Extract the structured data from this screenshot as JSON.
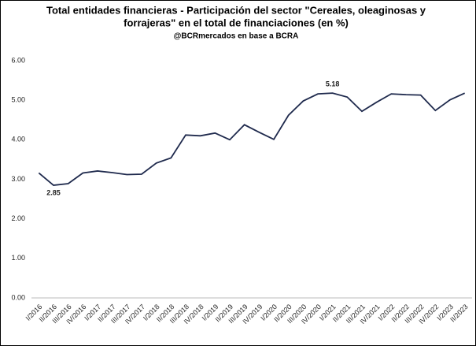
{
  "chart_data": {
    "type": "line",
    "title": [
      "Total entidades financieras - Participación del sector \"Cereales, oleaginosas y",
      "forrajeras\" en el total de financiaciones (en %)"
    ],
    "subtitle": "@BCRmercados en base a BCRA",
    "categories": [
      "I/2016",
      "II/2016",
      "III/2016",
      "IV/2016",
      "I/2017",
      "II/2017",
      "III/2017",
      "IV/2017",
      "I/2018",
      "II/2018",
      "III/2018",
      "IV/2018",
      "I/2019",
      "II/2019",
      "III/2019",
      "IV/2019",
      "I/2020",
      "II/2020",
      "III/2020",
      "IV/2020",
      "I/2021",
      "II/2021",
      "III/2021",
      "IV/2021",
      "I/2022",
      "II/2022",
      "III/2022",
      "IV/2022",
      "I/2023",
      "II/2023"
    ],
    "values": [
      3.16,
      2.85,
      2.89,
      3.16,
      3.21,
      3.17,
      3.12,
      3.13,
      3.41,
      3.54,
      4.12,
      4.1,
      4.17,
      4.0,
      4.38,
      4.19,
      4.01,
      4.62,
      4.98,
      5.16,
      5.18,
      5.08,
      4.72,
      4.95,
      5.16,
      5.14,
      5.13,
      4.74,
      5.01,
      5.18
    ],
    "value_labels": [
      null,
      "2.85",
      null,
      null,
      null,
      null,
      null,
      null,
      null,
      null,
      null,
      null,
      null,
      null,
      null,
      null,
      null,
      null,
      null,
      null,
      "5.18",
      null,
      null,
      null,
      null,
      null,
      null,
      null,
      null,
      null
    ],
    "color": "#1f2a4d",
    "ylim": [
      0,
      6
    ],
    "yticks": [
      {
        "value": 0,
        "label": "0.00"
      },
      {
        "value": 1,
        "label": "1.00"
      },
      {
        "value": 2,
        "label": "2.00"
      },
      {
        "value": 3,
        "label": "3.00"
      },
      {
        "value": 4,
        "label": "4.00"
      },
      {
        "value": 5,
        "label": "5.00"
      },
      {
        "value": 6,
        "label": "6.00"
      }
    ],
    "grid": false
  }
}
